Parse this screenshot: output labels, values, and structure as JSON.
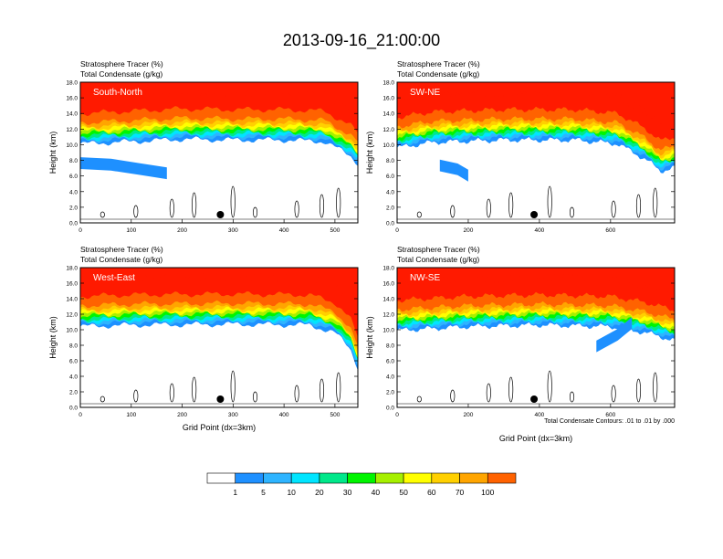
{
  "title": "2013-09-16_21:00:00",
  "footnote": "Total Condensate Contours: .01 to .01 by .000",
  "colors": {
    "tracer_levels": [
      "#ffffff",
      "#1e90ff",
      "#2eb4ff",
      "#00e5ff",
      "#00e88a",
      "#00f500",
      "#a6f000",
      "#ffff00",
      "#ffd000",
      "#ffa500",
      "#ff6200",
      "#ff1a00"
    ],
    "marker": "#000000"
  },
  "colorbar": {
    "labels": [
      "1",
      "5",
      "10",
      "20",
      "30",
      "40",
      "50",
      "60",
      "70",
      "100"
    ]
  },
  "chart_data": [
    {
      "type": "heatmap",
      "panel": "South-North",
      "title_lines": [
        "Stratosphere Tracer   (%)",
        "Total Condensate   (g/kg)"
      ],
      "ylabel": "Height (km)",
      "xlabel": "",
      "xlim": [
        0,
        545
      ],
      "ylim": [
        0,
        18
      ],
      "xticks": [
        "0",
        "100",
        "200",
        "300",
        "400",
        "500"
      ],
      "yticks": [
        "0.0",
        "2.0",
        "4.0",
        "6.0",
        "8.0",
        "10.0",
        "12.0",
        "14.0",
        "16.0",
        "18.0"
      ],
      "marker_x": 275,
      "tropopause_km": [
        [
          0,
          14.0
        ],
        [
          100,
          14.3
        ],
        [
          200,
          14.6
        ],
        [
          300,
          14.5
        ],
        [
          400,
          14.5
        ],
        [
          480,
          14.3
        ],
        [
          530,
          12.5
        ],
        [
          545,
          11.5
        ]
      ],
      "low_tracer_patch": [
        [
          0,
          7.8
        ],
        [
          60,
          7.6
        ],
        [
          120,
          7.0
        ],
        [
          170,
          6.5
        ]
      ]
    },
    {
      "type": "heatmap",
      "panel": "SW-NE",
      "title_lines": [
        "Stratosphere Tracer   (%)",
        "Total Condensate   (g/kg)"
      ],
      "ylabel": "Height (km)",
      "xlabel": "",
      "xlim": [
        0,
        780
      ],
      "ylim": [
        0,
        18
      ],
      "xticks": [
        "0",
        "200",
        "400",
        "600"
      ],
      "yticks": [
        "0.0",
        "2.0",
        "4.0",
        "6.0",
        "8.0",
        "10.0",
        "12.0",
        "14.0",
        "16.0",
        "18.0"
      ],
      "marker_x": 385,
      "tropopause_km": [
        [
          0,
          13.5
        ],
        [
          100,
          14.2
        ],
        [
          300,
          14.5
        ],
        [
          500,
          14.5
        ],
        [
          620,
          14.0
        ],
        [
          700,
          12.0
        ],
        [
          740,
          10.5
        ],
        [
          780,
          11.0
        ]
      ],
      "low_tracer_patch": [
        [
          120,
          7.5
        ],
        [
          170,
          7.0
        ],
        [
          200,
          6.2
        ]
      ]
    },
    {
      "type": "heatmap",
      "panel": "West-East",
      "title_lines": [
        "Stratosphere Tracer   (%)",
        "Total Condensate   (g/kg)"
      ],
      "ylabel": "Height (km)",
      "xlabel": "Grid Point (dx=3km)",
      "xlim": [
        0,
        545
      ],
      "ylim": [
        0,
        18
      ],
      "xticks": [
        "0",
        "100",
        "200",
        "300",
        "400",
        "500"
      ],
      "yticks": [
        "0.0",
        "2.0",
        "4.0",
        "6.0",
        "8.0",
        "10.0",
        "12.0",
        "14.0",
        "16.0",
        "18.0"
      ],
      "marker_x": 275,
      "tropopause_km": [
        [
          0,
          14.3
        ],
        [
          100,
          14.5
        ],
        [
          300,
          14.6
        ],
        [
          450,
          14.5
        ],
        [
          500,
          13.5
        ],
        [
          530,
          11.5
        ],
        [
          545,
          9.0
        ]
      ],
      "low_tracer_patch": []
    },
    {
      "type": "heatmap",
      "panel": "NW-SE",
      "title_lines": [
        "Stratosphere Tracer   (%)",
        "Total Condensate   (g/kg)"
      ],
      "ylabel": "Height (km)",
      "xlabel": "Grid Point (dx=3km)",
      "xlim": [
        0,
        780
      ],
      "ylim": [
        0,
        18
      ],
      "xticks": [
        "0",
        "200",
        "400",
        "600"
      ],
      "yticks": [
        "0.0",
        "2.0",
        "4.0",
        "6.0",
        "8.0",
        "10.0",
        "12.0",
        "14.0",
        "16.0",
        "18.0"
      ],
      "marker_x": 385,
      "tropopause_km": [
        [
          0,
          13.8
        ],
        [
          200,
          14.3
        ],
        [
          400,
          14.5
        ],
        [
          600,
          14.3
        ],
        [
          700,
          13.5
        ],
        [
          780,
          12.5
        ]
      ],
      "low_tracer_patch": [
        [
          560,
          8.0
        ],
        [
          620,
          9.5
        ],
        [
          660,
          11.0
        ]
      ]
    }
  ]
}
